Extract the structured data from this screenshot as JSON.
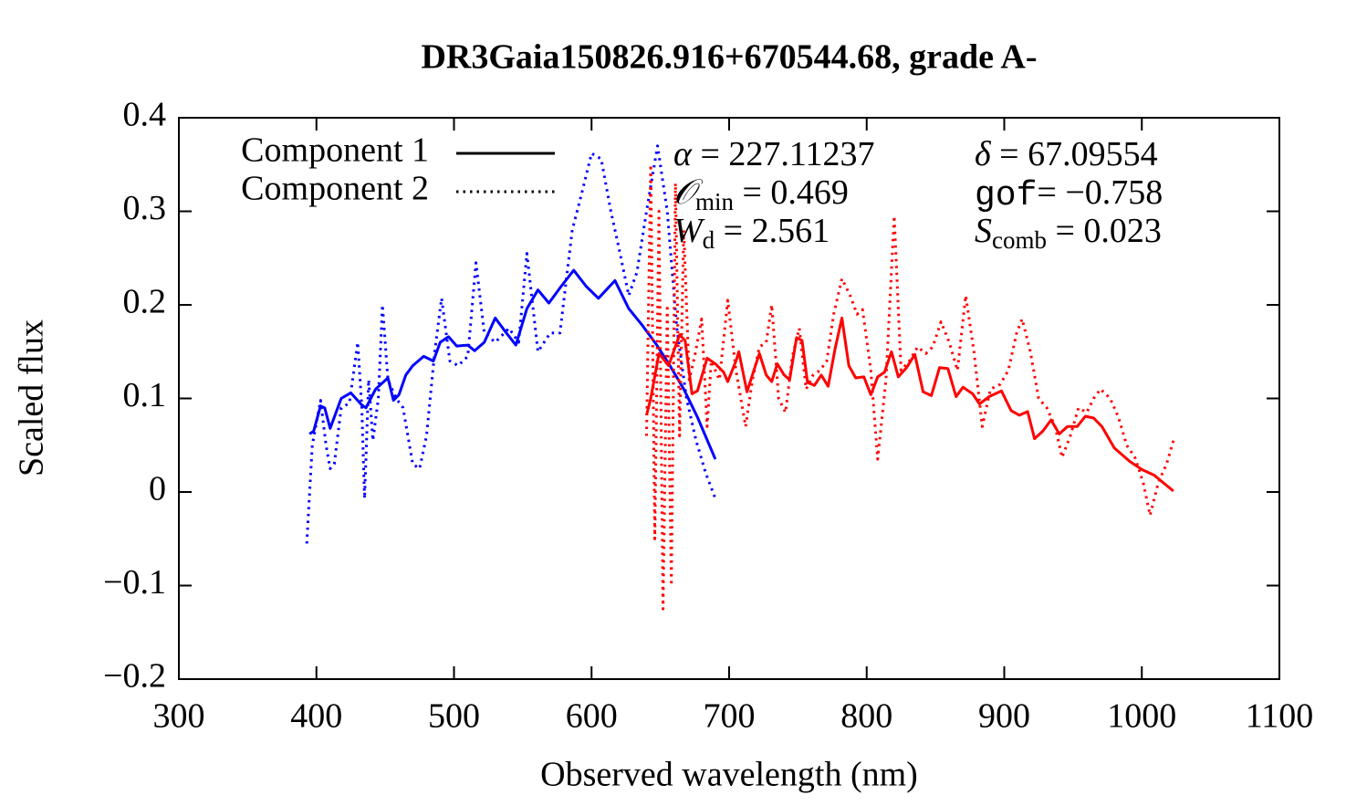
{
  "chart_data": {
    "type": "line",
    "title": "DR3Gaia150826.916+670544.68, grade A-",
    "x_label": "Observed wavelength (nm)",
    "y_label": "Scaled flux",
    "xlim": [
      300,
      1100
    ],
    "ylim": [
      -0.2,
      0.4
    ],
    "xticks": [
      300,
      400,
      500,
      600,
      700,
      800,
      900,
      1000,
      1100
    ],
    "yticks": [
      {
        "value": -0.2,
        "label": "−0.2"
      },
      {
        "value": -0.1,
        "label": "−0.1"
      },
      0,
      0.1,
      0.2,
      0.3,
      0.4
    ],
    "legend_position": "upper left",
    "legend_color": "#000000",
    "annotations": [
      {
        "symbol": "α",
        "text": " = 227.11237"
      },
      {
        "symbol": "δ",
        "text": " = 67.09554"
      },
      {
        "symbol": "𝒪",
        "sub": "min",
        "text": " = 0.469"
      },
      {
        "symbol": "gof",
        "text": "= −0.758"
      },
      {
        "symbol": "W",
        "sub": "d",
        "text": " = 2.561"
      },
      {
        "symbol": "S",
        "sub": "comb",
        "text": " = 0.023"
      }
    ],
    "series": [
      {
        "name": "Component 1",
        "color": "#0000ff",
        "dash": "solid",
        "x": [
          395,
          398,
          403,
          406,
          410,
          418,
          425,
          433,
          436,
          443,
          452,
          456,
          460,
          465,
          470,
          478,
          485,
          490,
          496,
          502,
          510,
          515,
          522,
          530,
          537,
          545,
          553,
          561,
          569,
          578,
          587,
          596,
          605,
          617,
          627,
          637,
          647,
          657,
          667,
          677,
          690
        ],
        "values": [
          0.062,
          0.065,
          0.092,
          0.09,
          0.068,
          0.1,
          0.106,
          0.093,
          0.09,
          0.11,
          0.122,
          0.098,
          0.104,
          0.125,
          0.135,
          0.145,
          0.14,
          0.16,
          0.166,
          0.156,
          0.157,
          0.151,
          0.16,
          0.186,
          0.172,
          0.157,
          0.196,
          0.216,
          0.202,
          0.22,
          0.237,
          0.22,
          0.207,
          0.226,
          0.196,
          0.178,
          0.158,
          0.135,
          0.11,
          0.08,
          0.035
        ]
      },
      {
        "name": "Component 2",
        "color": "#0000ff",
        "dash": "dotted",
        "x": [
          393,
          397,
          403,
          407,
          410,
          413,
          418,
          424,
          430,
          433,
          435,
          438,
          441,
          445,
          448,
          452,
          458,
          463,
          470,
          475,
          480,
          486,
          491,
          497,
          503,
          510,
          516,
          522,
          530,
          540,
          547,
          553,
          561,
          570,
          577,
          586,
          593,
          600,
          607,
          614,
          620,
          627,
          633,
          640,
          648,
          655,
          662,
          669,
          676,
          683,
          690
        ],
        "values": [
          -0.055,
          0.05,
          0.098,
          0.05,
          0.025,
          0.03,
          0.09,
          0.095,
          0.16,
          0.09,
          -0.007,
          0.12,
          0.055,
          0.1,
          0.2,
          0.12,
          0.1,
          0.09,
          0.03,
          0.025,
          0.06,
          0.15,
          0.207,
          0.14,
          0.135,
          0.145,
          0.245,
          0.17,
          0.16,
          0.175,
          0.16,
          0.255,
          0.15,
          0.17,
          0.17,
          0.28,
          0.32,
          0.362,
          0.356,
          0.3,
          0.26,
          0.21,
          0.235,
          0.3,
          0.37,
          0.3,
          0.175,
          0.1,
          0.055,
          0.02,
          -0.007
        ]
      },
      {
        "color": "#ff0000",
        "dash": "solid",
        "x": [
          640,
          643,
          649,
          656,
          664,
          668,
          673,
          677,
          684,
          690,
          696,
          699,
          705,
          707,
          713,
          718,
          722,
          727,
          731,
          735,
          740,
          744,
          749,
          753,
          757,
          762,
          767,
          772,
          777,
          782,
          787,
          792,
          798,
          803,
          808,
          813,
          818,
          823,
          829,
          835,
          841,
          847,
          853,
          859,
          865,
          870,
          877,
          882,
          889,
          898,
          905,
          911,
          917,
          922,
          928,
          934,
          940,
          946,
          953,
          959,
          965,
          971,
          980,
          991,
          1000,
          1009,
          1023
        ],
        "values": [
          0.082,
          0.1,
          0.148,
          0.135,
          0.168,
          0.162,
          0.105,
          0.108,
          0.143,
          0.137,
          0.128,
          0.118,
          0.14,
          0.15,
          0.107,
          0.13,
          0.148,
          0.125,
          0.118,
          0.137,
          0.125,
          0.12,
          0.165,
          0.162,
          0.117,
          0.114,
          0.125,
          0.113,
          0.153,
          0.186,
          0.135,
          0.122,
          0.123,
          0.104,
          0.123,
          0.128,
          0.15,
          0.123,
          0.133,
          0.147,
          0.107,
          0.103,
          0.133,
          0.132,
          0.102,
          0.112,
          0.105,
          0.094,
          0.102,
          0.108,
          0.087,
          0.082,
          0.086,
          0.057,
          0.065,
          0.077,
          0.062,
          0.07,
          0.07,
          0.081,
          0.079,
          0.07,
          0.047,
          0.033,
          0.024,
          0.018,
          0.001
        ]
      },
      {
        "color": "#ff0000",
        "dash": "dotted",
        "x": [
          640,
          643,
          646,
          649,
          652,
          655,
          658,
          661,
          664,
          667,
          671,
          675,
          680,
          684,
          687,
          693,
          699,
          705,
          712,
          717,
          722,
          727,
          731,
          736,
          741,
          746,
          751,
          756,
          761,
          766,
          771,
          776,
          782,
          788,
          793,
          797,
          803,
          808,
          814,
          820,
          825,
          831,
          837,
          843,
          848,
          854,
          860,
          866,
          872,
          878,
          884,
          890,
          897,
          903,
          909,
          913,
          919,
          925,
          931,
          937,
          942,
          948,
          954,
          960,
          965,
          970,
          977,
          983,
          989,
          995,
          1001,
          1006,
          1012,
          1018,
          1023
        ],
        "values": [
          0.06,
          0.35,
          -0.05,
          0.3,
          -0.125,
          0.2,
          -0.1,
          0.33,
          0.06,
          0.28,
          0.12,
          0.145,
          0.185,
          0.07,
          0.14,
          0.12,
          0.205,
          0.13,
          0.07,
          0.12,
          0.155,
          0.16,
          0.2,
          0.1,
          0.085,
          0.145,
          0.175,
          0.11,
          0.125,
          0.13,
          0.14,
          0.19,
          0.228,
          0.21,
          0.19,
          0.195,
          0.13,
          0.035,
          0.12,
          0.295,
          0.13,
          0.14,
          0.155,
          0.148,
          0.155,
          0.182,
          0.16,
          0.13,
          0.21,
          0.15,
          0.07,
          0.11,
          0.115,
          0.13,
          0.17,
          0.185,
          0.15,
          0.1,
          0.09,
          0.07,
          0.037,
          0.06,
          0.09,
          0.085,
          0.1,
          0.11,
          0.1,
          0.08,
          0.05,
          0.037,
          0.01,
          -0.025,
          0.01,
          0.03,
          0.055
        ]
      }
    ]
  }
}
